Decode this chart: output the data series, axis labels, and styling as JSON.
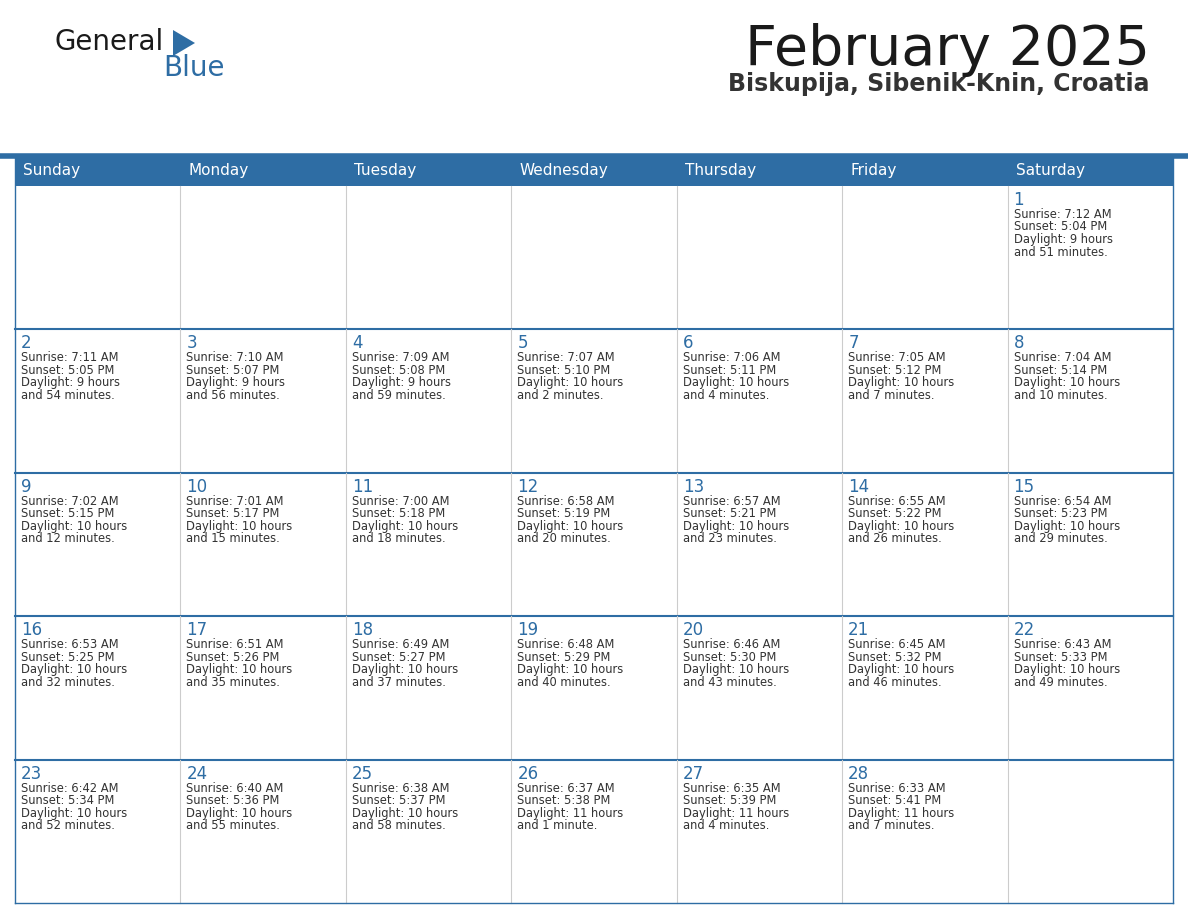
{
  "title": "February 2025",
  "subtitle": "Biskupija, Sibenik-Knin, Croatia",
  "header_color": "#2e6da4",
  "header_text_color": "#ffffff",
  "cell_bg_color": "#ffffff",
  "row_sep_color": "#2e6da4",
  "col_sep_color": "#cccccc",
  "day_number_color": "#2e6da4",
  "text_color": "#333333",
  "days_of_week": [
    "Sunday",
    "Monday",
    "Tuesday",
    "Wednesday",
    "Thursday",
    "Friday",
    "Saturday"
  ],
  "weeks": [
    [
      {
        "day": "",
        "info": ""
      },
      {
        "day": "",
        "info": ""
      },
      {
        "day": "",
        "info": ""
      },
      {
        "day": "",
        "info": ""
      },
      {
        "day": "",
        "info": ""
      },
      {
        "day": "",
        "info": ""
      },
      {
        "day": "1",
        "info": "Sunrise: 7:12 AM\nSunset: 5:04 PM\nDaylight: 9 hours\nand 51 minutes."
      }
    ],
    [
      {
        "day": "2",
        "info": "Sunrise: 7:11 AM\nSunset: 5:05 PM\nDaylight: 9 hours\nand 54 minutes."
      },
      {
        "day": "3",
        "info": "Sunrise: 7:10 AM\nSunset: 5:07 PM\nDaylight: 9 hours\nand 56 minutes."
      },
      {
        "day": "4",
        "info": "Sunrise: 7:09 AM\nSunset: 5:08 PM\nDaylight: 9 hours\nand 59 minutes."
      },
      {
        "day": "5",
        "info": "Sunrise: 7:07 AM\nSunset: 5:10 PM\nDaylight: 10 hours\nand 2 minutes."
      },
      {
        "day": "6",
        "info": "Sunrise: 7:06 AM\nSunset: 5:11 PM\nDaylight: 10 hours\nand 4 minutes."
      },
      {
        "day": "7",
        "info": "Sunrise: 7:05 AM\nSunset: 5:12 PM\nDaylight: 10 hours\nand 7 minutes."
      },
      {
        "day": "8",
        "info": "Sunrise: 7:04 AM\nSunset: 5:14 PM\nDaylight: 10 hours\nand 10 minutes."
      }
    ],
    [
      {
        "day": "9",
        "info": "Sunrise: 7:02 AM\nSunset: 5:15 PM\nDaylight: 10 hours\nand 12 minutes."
      },
      {
        "day": "10",
        "info": "Sunrise: 7:01 AM\nSunset: 5:17 PM\nDaylight: 10 hours\nand 15 minutes."
      },
      {
        "day": "11",
        "info": "Sunrise: 7:00 AM\nSunset: 5:18 PM\nDaylight: 10 hours\nand 18 minutes."
      },
      {
        "day": "12",
        "info": "Sunrise: 6:58 AM\nSunset: 5:19 PM\nDaylight: 10 hours\nand 20 minutes."
      },
      {
        "day": "13",
        "info": "Sunrise: 6:57 AM\nSunset: 5:21 PM\nDaylight: 10 hours\nand 23 minutes."
      },
      {
        "day": "14",
        "info": "Sunrise: 6:55 AM\nSunset: 5:22 PM\nDaylight: 10 hours\nand 26 minutes."
      },
      {
        "day": "15",
        "info": "Sunrise: 6:54 AM\nSunset: 5:23 PM\nDaylight: 10 hours\nand 29 minutes."
      }
    ],
    [
      {
        "day": "16",
        "info": "Sunrise: 6:53 AM\nSunset: 5:25 PM\nDaylight: 10 hours\nand 32 minutes."
      },
      {
        "day": "17",
        "info": "Sunrise: 6:51 AM\nSunset: 5:26 PM\nDaylight: 10 hours\nand 35 minutes."
      },
      {
        "day": "18",
        "info": "Sunrise: 6:49 AM\nSunset: 5:27 PM\nDaylight: 10 hours\nand 37 minutes."
      },
      {
        "day": "19",
        "info": "Sunrise: 6:48 AM\nSunset: 5:29 PM\nDaylight: 10 hours\nand 40 minutes."
      },
      {
        "day": "20",
        "info": "Sunrise: 6:46 AM\nSunset: 5:30 PM\nDaylight: 10 hours\nand 43 minutes."
      },
      {
        "day": "21",
        "info": "Sunrise: 6:45 AM\nSunset: 5:32 PM\nDaylight: 10 hours\nand 46 minutes."
      },
      {
        "day": "22",
        "info": "Sunrise: 6:43 AM\nSunset: 5:33 PM\nDaylight: 10 hours\nand 49 minutes."
      }
    ],
    [
      {
        "day": "23",
        "info": "Sunrise: 6:42 AM\nSunset: 5:34 PM\nDaylight: 10 hours\nand 52 minutes."
      },
      {
        "day": "24",
        "info": "Sunrise: 6:40 AM\nSunset: 5:36 PM\nDaylight: 10 hours\nand 55 minutes."
      },
      {
        "day": "25",
        "info": "Sunrise: 6:38 AM\nSunset: 5:37 PM\nDaylight: 10 hours\nand 58 minutes."
      },
      {
        "day": "26",
        "info": "Sunrise: 6:37 AM\nSunset: 5:38 PM\nDaylight: 11 hours\nand 1 minute."
      },
      {
        "day": "27",
        "info": "Sunrise: 6:35 AM\nSunset: 5:39 PM\nDaylight: 11 hours\nand 4 minutes."
      },
      {
        "day": "28",
        "info": "Sunrise: 6:33 AM\nSunset: 5:41 PM\nDaylight: 11 hours\nand 7 minutes."
      },
      {
        "day": "",
        "info": ""
      }
    ]
  ],
  "logo_general_color": "#1a1a1a",
  "logo_blue_color": "#2e6da4",
  "figsize": [
    11.88,
    9.18
  ],
  "dpi": 100
}
